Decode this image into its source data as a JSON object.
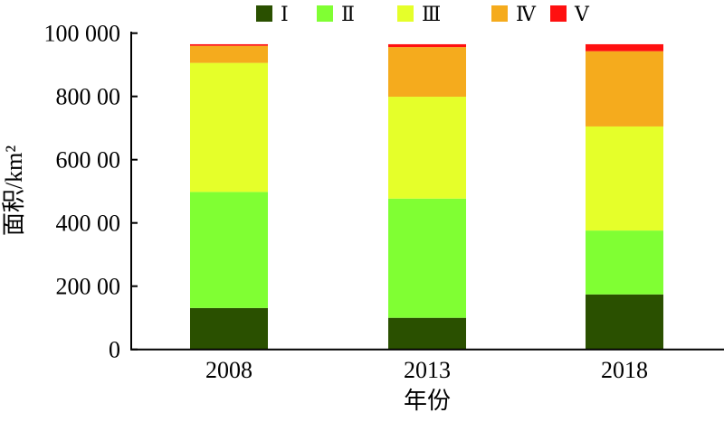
{
  "chart_data": {
    "type": "bar",
    "stacked": true,
    "title": "",
    "xlabel": "年份",
    "ylabel": "面积/km²",
    "categories": [
      "2008",
      "2013",
      "2018"
    ],
    "ylim": [
      0,
      100000
    ],
    "yticks": [
      0,
      20000,
      40000,
      60000,
      80000,
      100000
    ],
    "ytick_labels": [
      "0",
      "200 00",
      "400 00",
      "600 00",
      "800 00",
      "100 000"
    ],
    "legend_position": "top",
    "grid": false,
    "series": [
      {
        "name": "Ⅰ",
        "color": "#2a5000",
        "values": [
          13100,
          10000,
          17400
        ]
      },
      {
        "name": "Ⅱ",
        "color": "#80ff33",
        "values": [
          36700,
          37700,
          20200
        ]
      },
      {
        "name": "Ⅲ",
        "color": "#e5ff2a",
        "values": [
          40800,
          32200,
          32900
        ]
      },
      {
        "name": "Ⅳ",
        "color": "#f5ab1d",
        "values": [
          5400,
          15700,
          23800
        ]
      },
      {
        "name": "Ⅴ",
        "color": "#ff1010",
        "values": [
          500,
          900,
          2200
        ]
      }
    ]
  }
}
